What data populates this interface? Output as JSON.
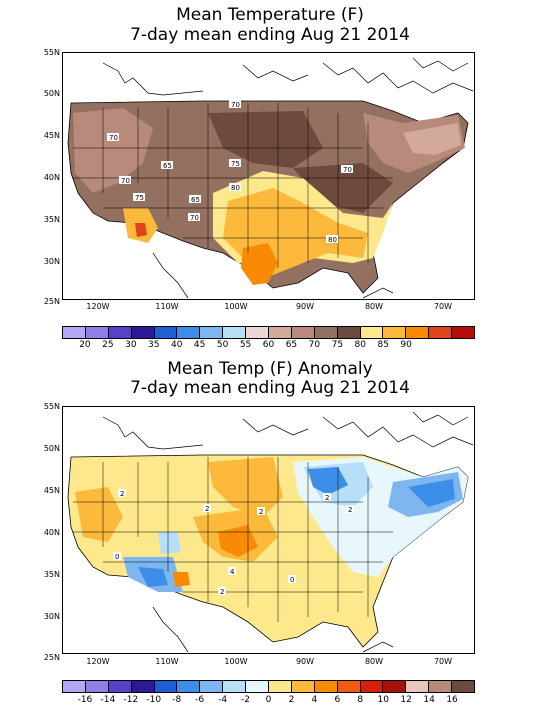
{
  "top": {
    "title_line1": "Mean Temperature (F)",
    "title_line2": "7-day mean ending Aug 21 2014",
    "lat_labels": [
      "55N",
      "50N",
      "45N",
      "40N",
      "35N",
      "30N",
      "25N"
    ],
    "lon_labels": [
      "120W",
      "110W",
      "100W",
      "90W",
      "80W",
      "70W"
    ],
    "colorbar_labels": [
      "20",
      "25",
      "30",
      "35",
      "40",
      "45",
      "50",
      "55",
      "60",
      "65",
      "70",
      "75",
      "80",
      "85",
      "90"
    ],
    "colorbar_colors": [
      "#b3a6f2",
      "#8f7fe6",
      "#5a40c8",
      "#2a1a9a",
      "#1e5fd6",
      "#3d8ee8",
      "#7fb6f0",
      "#b8dff8",
      "#e9d9d2",
      "#d3a99c",
      "#b88a7c",
      "#93705f",
      "#6e4a3e",
      "#fde98c",
      "#fcb93b",
      "#f98a06",
      "#e0421a",
      "#b50c0c"
    ],
    "contour_labels": [
      "70",
      "70",
      "70",
      "65",
      "75",
      "70",
      "80",
      "65",
      "75",
      "70",
      "80",
      "70"
    ]
  },
  "bottom": {
    "title_line1": "Mean Temp (F) Anomaly",
    "title_line2": "7-day mean ending Aug 21 2014",
    "lat_labels": [
      "55N",
      "50N",
      "45N",
      "40N",
      "35N",
      "30N",
      "25N"
    ],
    "lon_labels": [
      "120W",
      "110W",
      "100W",
      "90W",
      "80W",
      "70W"
    ],
    "colorbar_labels": [
      "-16",
      "-14",
      "-12",
      "-10",
      "-8",
      "-6",
      "-4",
      "-2",
      "0",
      "2",
      "4",
      "6",
      "8",
      "10",
      "12",
      "14",
      "16"
    ],
    "colorbar_colors": [
      "#b3a6f2",
      "#8f7fe6",
      "#5a40c8",
      "#2a1a9a",
      "#1e5fd6",
      "#3d8ee8",
      "#7fb6f0",
      "#b8dff8",
      "#e7f7fb",
      "#fde98c",
      "#fcb93b",
      "#f98a06",
      "#f05a12",
      "#d81e0e",
      "#a8100e",
      "#e7c6be",
      "#b88a7c",
      "#6e4a3e"
    ],
    "contour_labels": [
      "2",
      "2",
      "2",
      "2",
      "2",
      "0",
      "2",
      "2",
      "2",
      "4",
      "2",
      "0",
      "0",
      "2"
    ]
  }
}
